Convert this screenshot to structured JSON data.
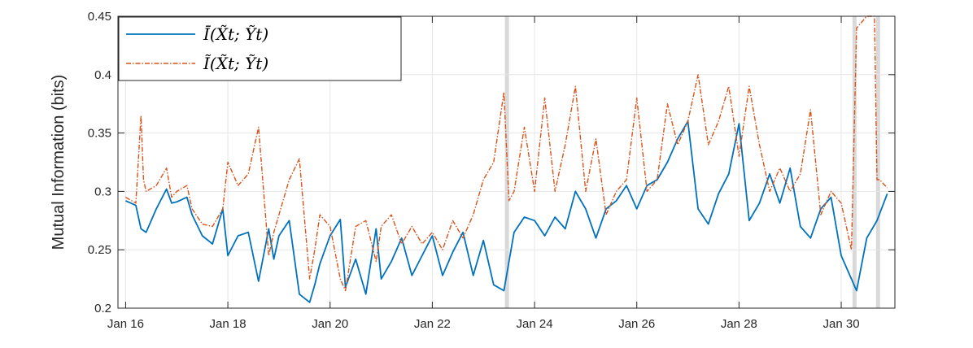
{
  "chart_data": {
    "type": "line",
    "xlabel": "",
    "ylabel": "Mutual Information (bits)",
    "ylim": [
      0.2,
      0.45
    ],
    "xlim": [
      15.85,
      31.05
    ],
    "yticks": [
      0.2,
      0.25,
      0.3,
      0.35,
      0.4,
      0.45
    ],
    "ytick_labels": [
      "0.2",
      "0.25",
      "0.3",
      "0.35",
      "0.4",
      "0.45"
    ],
    "xticks": [
      16,
      18,
      20,
      22,
      24,
      26,
      28,
      30
    ],
    "xtick_labels": [
      "Jan 16",
      "Jan 18",
      "Jan 20",
      "Jan 22",
      "Jan 24",
      "Jan 26",
      "Jan 28",
      "Jan 30"
    ],
    "grid": true,
    "legend_position": "top-left",
    "highlight_bands": [
      [
        23.42,
        23.5
      ],
      [
        30.22,
        30.3
      ],
      [
        30.68,
        30.76
      ]
    ],
    "colors": {
      "series1": "#0072BD",
      "series2": "#D95319",
      "band": "#d9d9d9"
    },
    "series": [
      {
        "name": "Ī(X̃t; Ỹt)",
        "style": "solid",
        "x": [
          16.0,
          16.2,
          16.3,
          16.4,
          16.6,
          16.8,
          16.9,
          17.0,
          17.2,
          17.3,
          17.5,
          17.7,
          17.9,
          18.0,
          18.2,
          18.4,
          18.6,
          18.8,
          18.9,
          19.0,
          19.2,
          19.4,
          19.6,
          19.7,
          19.8,
          20.0,
          20.2,
          20.3,
          20.5,
          20.7,
          20.9,
          21.0,
          21.2,
          21.4,
          21.6,
          21.8,
          22.0,
          22.2,
          22.4,
          22.6,
          22.8,
          23.0,
          23.2,
          23.4,
          23.6,
          23.8,
          24.0,
          24.2,
          24.4,
          24.6,
          24.8,
          25.0,
          25.2,
          25.4,
          25.6,
          25.8,
          26.0,
          26.2,
          26.4,
          26.6,
          26.8,
          27.0,
          27.2,
          27.4,
          27.6,
          27.8,
          28.0,
          28.2,
          28.4,
          28.6,
          28.8,
          29.0,
          29.2,
          29.4,
          29.6,
          29.8,
          30.0,
          30.2,
          30.3,
          30.5,
          30.7,
          30.9
        ],
        "y": [
          0.292,
          0.288,
          0.268,
          0.265,
          0.285,
          0.302,
          0.29,
          0.291,
          0.295,
          0.28,
          0.262,
          0.255,
          0.285,
          0.245,
          0.262,
          0.265,
          0.223,
          0.268,
          0.242,
          0.262,
          0.275,
          0.212,
          0.205,
          0.22,
          0.238,
          0.262,
          0.276,
          0.218,
          0.242,
          0.212,
          0.268,
          0.225,
          0.24,
          0.26,
          0.228,
          0.245,
          0.262,
          0.228,
          0.248,
          0.265,
          0.228,
          0.258,
          0.22,
          0.215,
          0.265,
          0.278,
          0.275,
          0.262,
          0.278,
          0.268,
          0.3,
          0.285,
          0.26,
          0.285,
          0.292,
          0.305,
          0.285,
          0.305,
          0.31,
          0.325,
          0.345,
          0.36,
          0.285,
          0.272,
          0.298,
          0.315,
          0.358,
          0.275,
          0.29,
          0.315,
          0.29,
          0.32,
          0.27,
          0.26,
          0.285,
          0.295,
          0.245,
          0.225,
          0.215,
          0.26,
          0.275,
          0.298
        ]
      },
      {
        "name": "Ĩ(X̃t; Ỹt)",
        "style": "dash-dot",
        "x": [
          16.0,
          16.2,
          16.3,
          16.35,
          16.4,
          16.6,
          16.8,
          16.9,
          17.0,
          17.2,
          17.3,
          17.5,
          17.7,
          17.9,
          18.0,
          18.2,
          18.4,
          18.6,
          18.8,
          18.9,
          19.0,
          19.2,
          19.4,
          19.6,
          19.7,
          19.8,
          20.0,
          20.2,
          20.3,
          20.5,
          20.7,
          20.9,
          21.0,
          21.2,
          21.4,
          21.6,
          21.8,
          22.0,
          22.2,
          22.4,
          22.6,
          22.8,
          23.0,
          23.2,
          23.4,
          23.5,
          23.6,
          23.8,
          24.0,
          24.2,
          24.4,
          24.6,
          24.8,
          25.0,
          25.2,
          25.4,
          25.6,
          25.8,
          26.0,
          26.2,
          26.4,
          26.6,
          26.8,
          27.0,
          27.2,
          27.4,
          27.6,
          27.8,
          28.0,
          28.2,
          28.4,
          28.6,
          28.8,
          29.0,
          29.2,
          29.4,
          29.6,
          29.8,
          30.0,
          30.2,
          30.3,
          30.5,
          30.65,
          30.7,
          30.75,
          30.9
        ],
        "y": [
          0.295,
          0.29,
          0.365,
          0.31,
          0.3,
          0.305,
          0.32,
          0.295,
          0.3,
          0.305,
          0.285,
          0.272,
          0.27,
          0.285,
          0.325,
          0.305,
          0.315,
          0.355,
          0.245,
          0.265,
          0.28,
          0.31,
          0.328,
          0.225,
          0.25,
          0.28,
          0.27,
          0.225,
          0.215,
          0.27,
          0.275,
          0.24,
          0.27,
          0.28,
          0.255,
          0.27,
          0.255,
          0.265,
          0.25,
          0.275,
          0.26,
          0.28,
          0.31,
          0.325,
          0.385,
          0.292,
          0.3,
          0.355,
          0.3,
          0.38,
          0.3,
          0.34,
          0.39,
          0.3,
          0.345,
          0.28,
          0.3,
          0.31,
          0.38,
          0.3,
          0.31,
          0.375,
          0.34,
          0.36,
          0.4,
          0.34,
          0.36,
          0.39,
          0.33,
          0.39,
          0.34,
          0.3,
          0.32,
          0.3,
          0.315,
          0.37,
          0.28,
          0.3,
          0.29,
          0.25,
          0.44,
          0.45,
          0.45,
          0.31,
          0.31,
          0.303
        ]
      }
    ]
  }
}
